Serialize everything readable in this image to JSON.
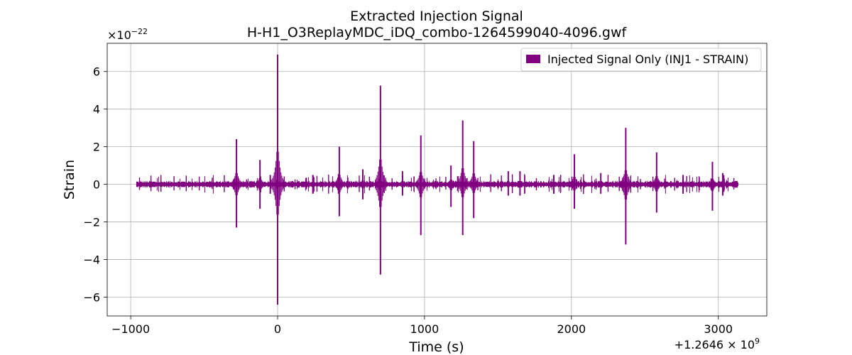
{
  "chart_data": {
    "type": "line",
    "title": "Extracted Injection Signal",
    "subtitle": "H-H1_O3ReplayMDC_iDQ_combo-1264599040-4096.gwf",
    "xlabel": "Time (s)",
    "ylabel": "Strain",
    "x_offset_label": "+1.2646 × 10",
    "x_offset_exp": "9",
    "y_scale_label": "×10",
    "y_scale_exp": "−22",
    "xlim": [
      -1160,
      3330
    ],
    "ylim": [
      -7.0,
      7.5
    ],
    "x_ticks": [
      -1000,
      0,
      1000,
      2000,
      3000
    ],
    "x_tick_labels": [
      "−1000",
      "0",
      "1000",
      "2000",
      "3000"
    ],
    "y_ticks": [
      -6,
      -4,
      -2,
      0,
      2,
      4,
      6
    ],
    "y_tick_labels": [
      "−6",
      "−4",
      "−2",
      "0",
      "2",
      "4",
      "6"
    ],
    "grid": true,
    "legend_position": "top-right",
    "color": "#800080",
    "series": [
      {
        "name": "Injected Signal Only (INJ1 - STRAIN)",
        "x_range": [
          -960,
          3136
        ],
        "baseline_amplitude": 0.12,
        "spikes": [
          {
            "x": -280,
            "max": 2.4,
            "min": -2.3
          },
          {
            "x": -120,
            "max": 1.3,
            "min": -1.3
          },
          {
            "x": 0,
            "max": 6.9,
            "min": -6.4
          },
          {
            "x": 420,
            "max": 2.0,
            "min": -1.7
          },
          {
            "x": 700,
            "max": 5.25,
            "min": -4.8
          },
          {
            "x": 975,
            "max": 2.6,
            "min": -2.7
          },
          {
            "x": 1260,
            "max": 3.4,
            "min": -2.7
          },
          {
            "x": 1335,
            "max": 2.3,
            "min": -1.8
          },
          {
            "x": 2370,
            "max": 3.0,
            "min": -3.2
          },
          {
            "x": 2580,
            "max": 1.7,
            "min": -1.5
          },
          {
            "x": 1570,
            "max": 0.7,
            "min": -0.6
          },
          {
            "x": 1650,
            "max": 0.7,
            "min": -0.6
          },
          {
            "x": 2020,
            "max": 1.6,
            "min": -1.3
          },
          {
            "x": 2960,
            "max": 1.2,
            "min": -1.4
          },
          {
            "x": 1180,
            "max": 1.0,
            "min": -1.2
          },
          {
            "x": 580,
            "max": 0.8,
            "min": -0.8
          },
          {
            "x": 850,
            "max": 0.7,
            "min": -0.6
          },
          {
            "x": -50,
            "max": 0.5,
            "min": -0.5
          },
          {
            "x": 240,
            "max": 0.5,
            "min": -0.5
          },
          {
            "x": 1880,
            "max": 0.5,
            "min": -0.5
          },
          {
            "x": 2200,
            "max": 0.6,
            "min": -0.5
          },
          {
            "x": 2760,
            "max": 0.5,
            "min": -0.5
          },
          {
            "x": 3030,
            "max": 0.6,
            "min": -0.6
          }
        ]
      }
    ]
  }
}
